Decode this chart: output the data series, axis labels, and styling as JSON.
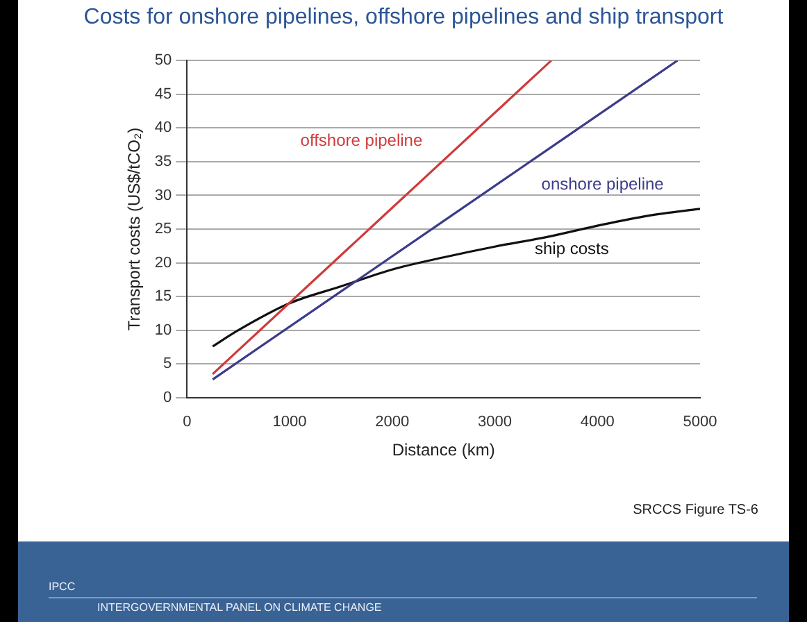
{
  "chart_data": {
    "type": "line",
    "title": "Costs for onshore pipelines, offshore pipelines and ship transport",
    "xlabel": "Distance (km)",
    "ylabel": "Transport costs (US$/tCO₂)",
    "xlim": [
      0,
      5000
    ],
    "xticks": [
      0,
      1000,
      2000,
      3000,
      4000,
      5000
    ],
    "ylim": [
      0,
      50
    ],
    "yticks": [
      0,
      5,
      10,
      15,
      20,
      25,
      30,
      35,
      40,
      45,
      50
    ],
    "grid": "y",
    "legend": false,
    "marker": "none",
    "series": [
      {
        "name": "offshore pipeline",
        "color": "#d03a3a",
        "x": [
          250,
          3550
        ],
        "values": [
          3.5,
          50
        ]
      },
      {
        "name": "onshore pipeline",
        "color": "#3c3c8c",
        "x": [
          250,
          4780
        ],
        "values": [
          2.7,
          50
        ]
      },
      {
        "name": "ship costs",
        "color": "#111111",
        "x": [
          250,
          500,
          1000,
          1500,
          2000,
          2500,
          3000,
          3500,
          4000,
          4500,
          5000
        ],
        "values": [
          7.6,
          10,
          14,
          16.5,
          19,
          20.8,
          22.4,
          23.8,
          25.5,
          27,
          28
        ]
      }
    ],
    "annotations": [
      "SRCCS Figure TS-6",
      "IPCC",
      "INTERGOVERNMENTAL PANEL ON CLIMATE CHANGE"
    ]
  }
}
